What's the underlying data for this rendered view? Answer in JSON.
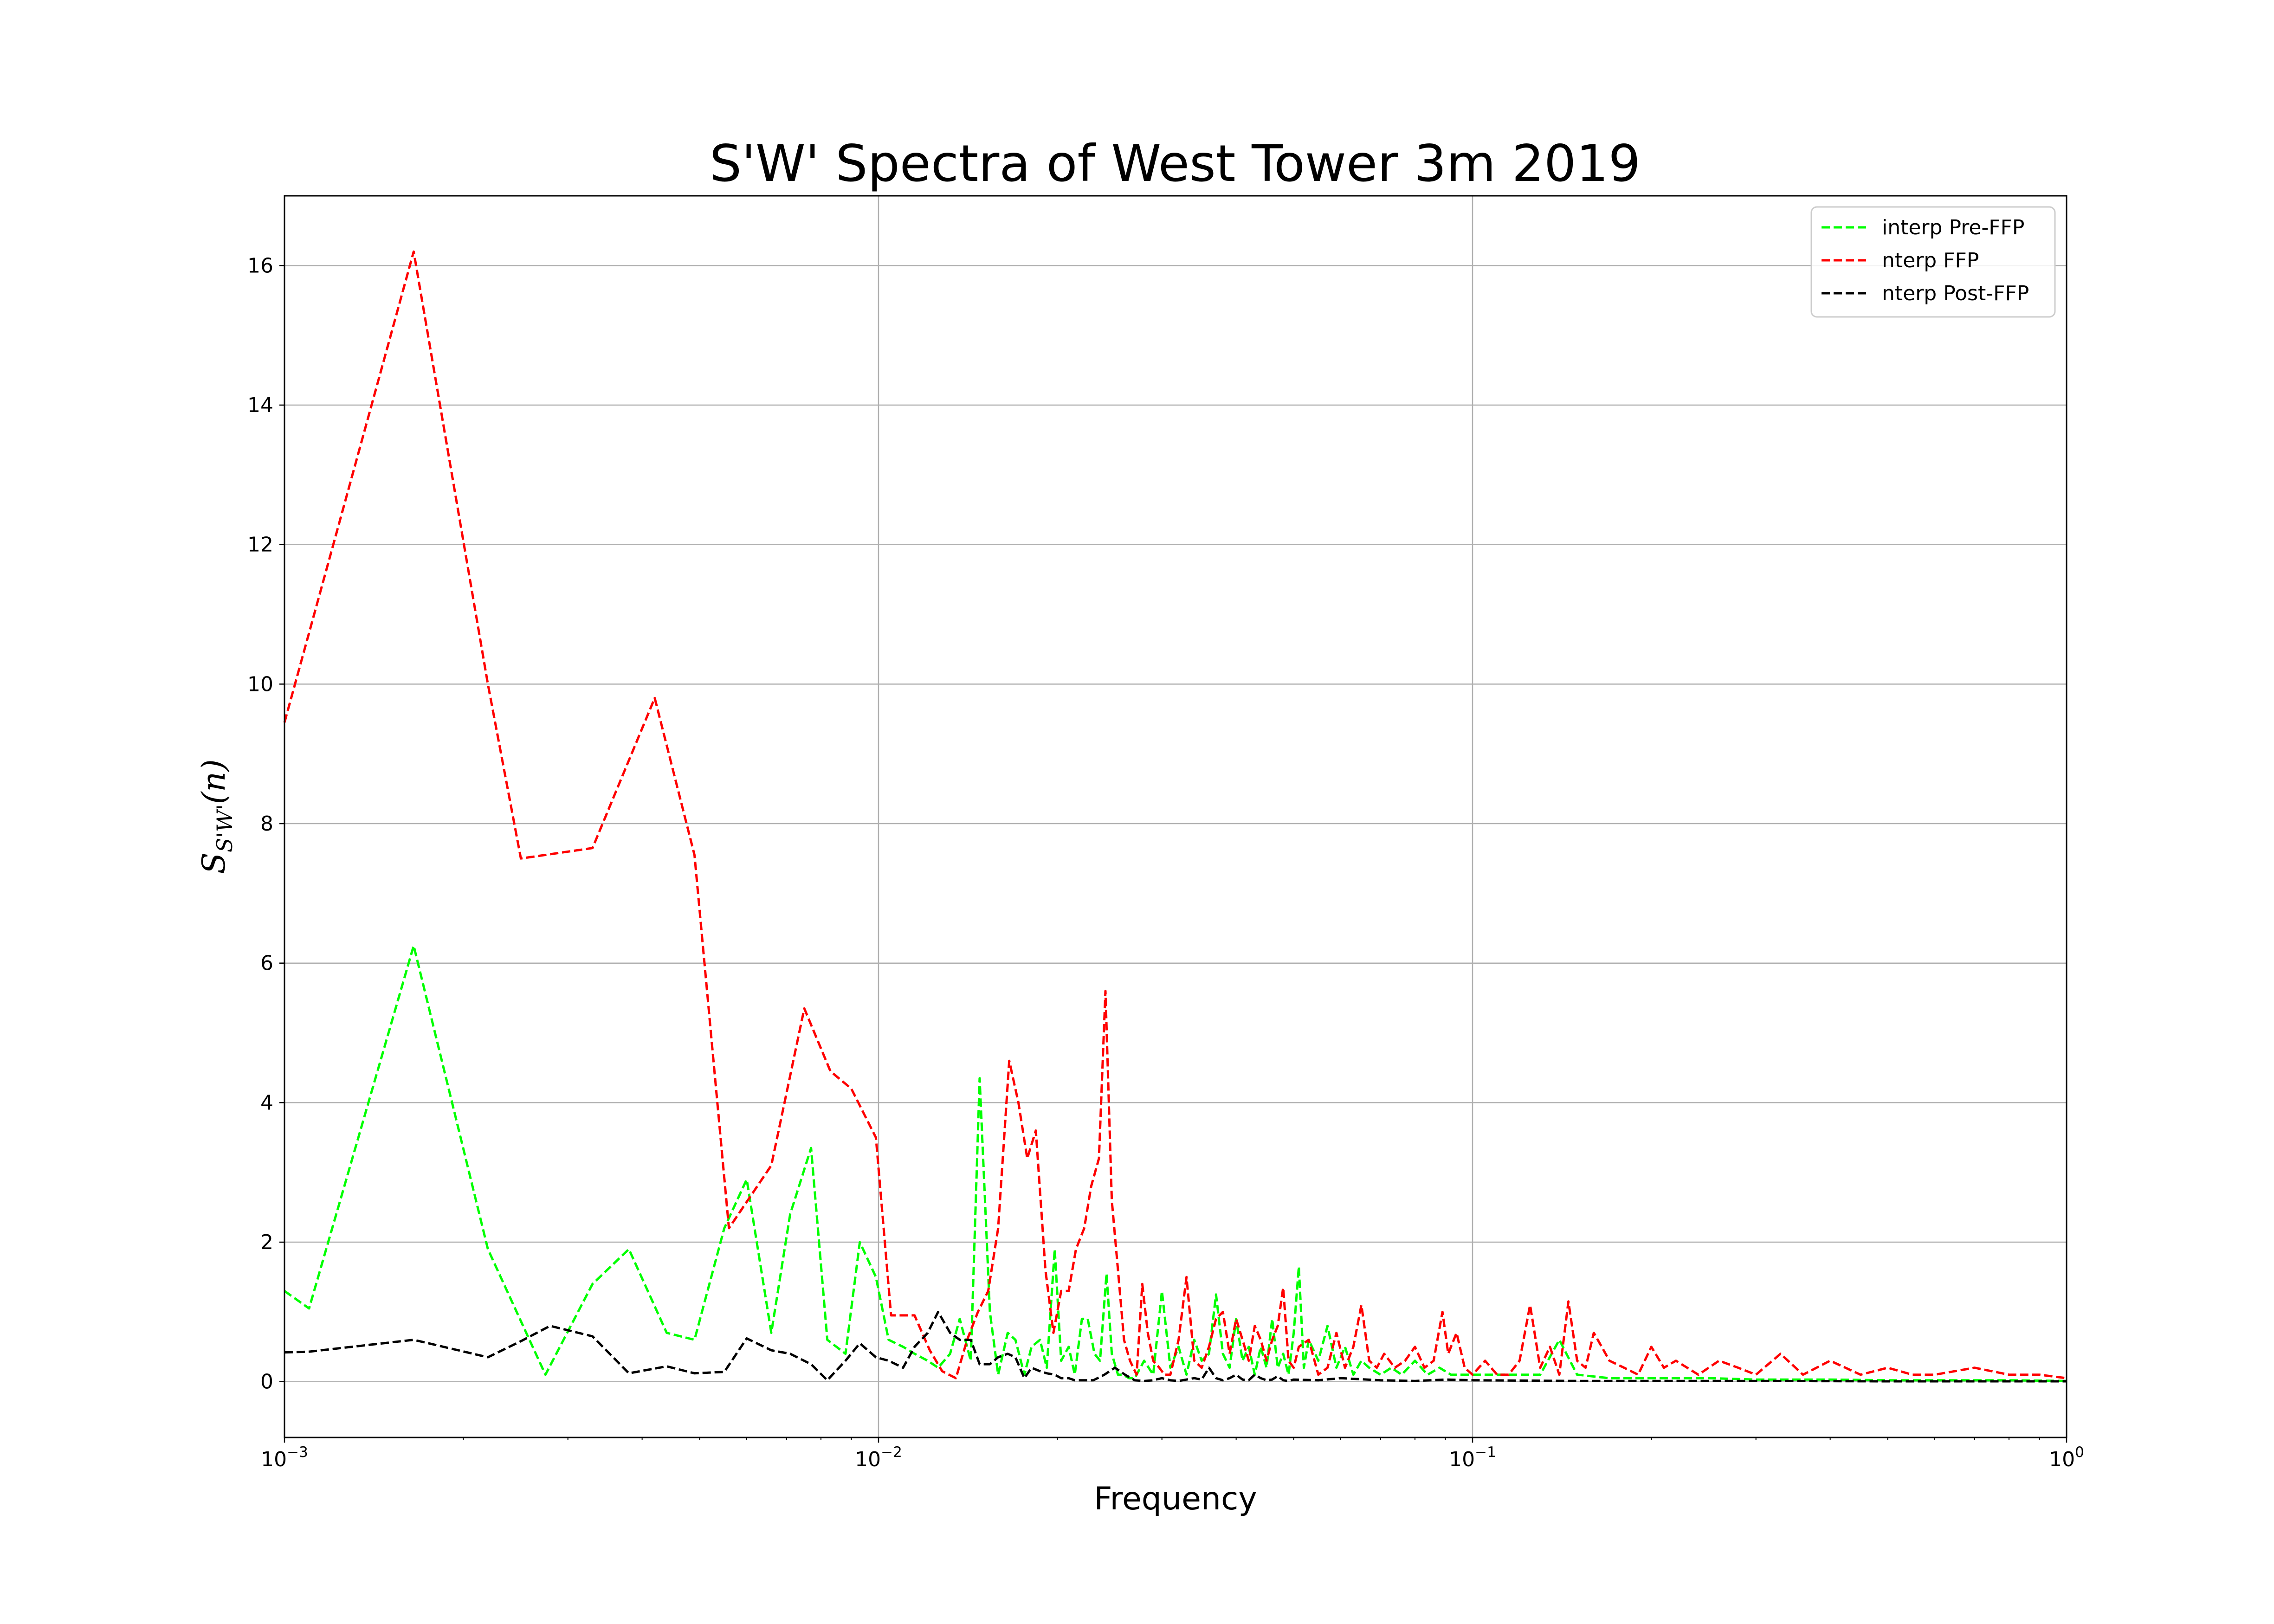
{
  "chart_data": {
    "type": "line",
    "title": "S'W' Spectra of West Tower 3m 2019",
    "xlabel": "Frequency",
    "ylabel_base": "S",
    "ylabel_sub": "S'W'",
    "ylabel_arg": "(n)",
    "x_scale": "log",
    "xlim": [
      0.001,
      1
    ],
    "ylim": [
      -0.8,
      17
    ],
    "grid": true,
    "legend_position": "upper right",
    "y_ticks": [
      {
        "value": 0,
        "label": "0"
      },
      {
        "value": 2,
        "label": "2"
      },
      {
        "value": 4,
        "label": "4"
      },
      {
        "value": 6,
        "label": "6"
      },
      {
        "value": 8,
        "label": "8"
      },
      {
        "value": 10,
        "label": "10"
      },
      {
        "value": 12,
        "label": "12"
      },
      {
        "value": 14,
        "label": "14"
      },
      {
        "value": 16,
        "label": "16"
      }
    ],
    "x_ticks": [
      {
        "value": 0.001,
        "base": "10",
        "exp": "−3"
      },
      {
        "value": 0.01,
        "base": "10",
        "exp": "−2"
      },
      {
        "value": 0.1,
        "base": "10",
        "exp": "−1"
      },
      {
        "value": 1,
        "base": "10",
        "exp": "0"
      }
    ],
    "series": [
      {
        "name": "interp Pre-FFP",
        "color": "#00ff00",
        "x": [
          0.001,
          0.0011,
          0.00165,
          0.0022,
          0.00275,
          0.0033,
          0.0038,
          0.0044,
          0.0049,
          0.0055,
          0.006,
          0.0066,
          0.0071,
          0.0077,
          0.0082,
          0.0088,
          0.0093,
          0.0099,
          0.0104,
          0.011,
          0.0115,
          0.0121,
          0.0126,
          0.0132,
          0.0137,
          0.0143,
          0.0148,
          0.0154,
          0.0159,
          0.0165,
          0.017,
          0.0176,
          0.0181,
          0.0187,
          0.0192,
          0.0198,
          0.0203,
          0.0209,
          0.0214,
          0.022,
          0.0225,
          0.0231,
          0.0236,
          0.0242,
          0.0247,
          0.0253,
          0.0258,
          0.0264,
          0.027,
          0.028,
          0.029,
          0.03,
          0.031,
          0.032,
          0.033,
          0.034,
          0.035,
          0.036,
          0.037,
          0.038,
          0.039,
          0.04,
          0.041,
          0.042,
          0.043,
          0.044,
          0.045,
          0.046,
          0.047,
          0.048,
          0.049,
          0.05,
          0.051,
          0.052,
          0.053,
          0.055,
          0.057,
          0.059,
          0.061,
          0.063,
          0.065,
          0.067,
          0.07,
          0.073,
          0.076,
          0.08,
          0.084,
          0.088,
          0.092,
          0.096,
          0.1,
          0.11,
          0.12,
          0.13,
          0.14,
          0.15,
          0.17,
          0.2,
          0.25,
          0.3,
          0.4,
          0.5,
          0.6,
          0.8,
          1.0
        ],
        "y": [
          1.3,
          1.05,
          6.25,
          1.9,
          0.1,
          1.4,
          1.9,
          0.7,
          0.6,
          2.2,
          2.9,
          0.7,
          2.4,
          3.35,
          0.6,
          0.4,
          2.0,
          1.5,
          0.6,
          0.5,
          0.4,
          0.3,
          0.2,
          0.4,
          0.9,
          0.3,
          4.35,
          1.0,
          0.1,
          0.7,
          0.6,
          0.1,
          0.5,
          0.6,
          0.2,
          1.9,
          0.3,
          0.5,
          0.1,
          0.9,
          0.9,
          0.4,
          0.3,
          1.55,
          0.4,
          0.1,
          0.1,
          0.05,
          0.05,
          0.3,
          0.1,
          1.3,
          0.2,
          0.5,
          0.1,
          0.6,
          0.3,
          0.4,
          1.25,
          0.4,
          0.2,
          0.9,
          0.3,
          0.5,
          0.1,
          0.5,
          0.2,
          0.9,
          0.2,
          0.4,
          0.1,
          0.7,
          1.65,
          0.2,
          0.6,
          0.3,
          0.8,
          0.2,
          0.5,
          0.1,
          0.3,
          0.2,
          0.1,
          0.2,
          0.1,
          0.3,
          0.1,
          0.2,
          0.1,
          0.1,
          0.1,
          0.1,
          0.1,
          0.1,
          0.6,
          0.1,
          0.05,
          0.05,
          0.05,
          0.03,
          0.03,
          0.02,
          0.02,
          0.02,
          0.01
        ]
      },
      {
        "name": "nterp FFP",
        "color": "#ff0000",
        "x": [
          0.001,
          0.00165,
          0.0022,
          0.0025,
          0.0033,
          0.0042,
          0.0049,
          0.0056,
          0.0066,
          0.0075,
          0.0083,
          0.009,
          0.0099,
          0.0105,
          0.0115,
          0.0122,
          0.0128,
          0.0135,
          0.0141,
          0.0147,
          0.0153,
          0.0159,
          0.0166,
          0.0172,
          0.0178,
          0.0184,
          0.0191,
          0.0197,
          0.0203,
          0.0209,
          0.0215,
          0.0222,
          0.0228,
          0.0235,
          0.0241,
          0.0247,
          0.0253,
          0.0259,
          0.0265,
          0.0272,
          0.0278,
          0.0284,
          0.029,
          0.0297,
          0.0303,
          0.031,
          0.032,
          0.033,
          0.034,
          0.035,
          0.036,
          0.037,
          0.038,
          0.039,
          0.04,
          0.041,
          0.042,
          0.043,
          0.044,
          0.045,
          0.046,
          0.047,
          0.048,
          0.049,
          0.05,
          0.051,
          0.053,
          0.055,
          0.057,
          0.059,
          0.061,
          0.063,
          0.065,
          0.067,
          0.069,
          0.071,
          0.074,
          0.077,
          0.08,
          0.083,
          0.086,
          0.089,
          0.091,
          0.094,
          0.097,
          0.1,
          0.105,
          0.11,
          0.115,
          0.12,
          0.125,
          0.13,
          0.135,
          0.14,
          0.145,
          0.15,
          0.155,
          0.16,
          0.165,
          0.17,
          0.18,
          0.19,
          0.2,
          0.21,
          0.22,
          0.24,
          0.26,
          0.28,
          0.3,
          0.33,
          0.36,
          0.4,
          0.45,
          0.5,
          0.55,
          0.6,
          0.7,
          0.8,
          0.9,
          1.0
        ],
        "y": [
          9.45,
          16.2,
          10.0,
          7.5,
          7.65,
          9.8,
          7.55,
          2.2,
          3.1,
          5.35,
          4.45,
          4.2,
          3.5,
          0.95,
          0.95,
          0.45,
          0.15,
          0.05,
          0.6,
          1.0,
          1.3,
          2.2,
          4.6,
          4.0,
          3.2,
          3.6,
          1.6,
          0.7,
          1.3,
          1.3,
          1.9,
          2.2,
          2.8,
          3.2,
          5.6,
          2.6,
          1.6,
          0.6,
          0.3,
          0.1,
          1.4,
          0.7,
          0.3,
          0.2,
          0.1,
          0.1,
          0.6,
          1.5,
          0.3,
          0.2,
          0.5,
          0.9,
          1.0,
          0.4,
          0.9,
          0.6,
          0.3,
          0.8,
          0.6,
          0.3,
          0.6,
          0.8,
          1.35,
          0.3,
          0.2,
          0.5,
          0.6,
          0.1,
          0.2,
          0.7,
          0.2,
          0.5,
          1.1,
          0.3,
          0.2,
          0.4,
          0.2,
          0.3,
          0.5,
          0.2,
          0.3,
          1.0,
          0.4,
          0.7,
          0.2,
          0.1,
          0.3,
          0.1,
          0.1,
          0.3,
          1.1,
          0.2,
          0.5,
          0.1,
          1.15,
          0.3,
          0.2,
          0.7,
          0.5,
          0.3,
          0.2,
          0.1,
          0.5,
          0.2,
          0.3,
          0.1,
          0.3,
          0.2,
          0.1,
          0.4,
          0.1,
          0.3,
          0.1,
          0.2,
          0.1,
          0.1,
          0.2,
          0.1,
          0.1,
          0.05
        ]
      },
      {
        "name": "nterp Post-FFP",
        "color": "#000000",
        "x": [
          0.001,
          0.0011,
          0.00165,
          0.0022,
          0.0025,
          0.0028,
          0.0033,
          0.0038,
          0.0044,
          0.0049,
          0.0055,
          0.006,
          0.0066,
          0.0071,
          0.0077,
          0.0082,
          0.0088,
          0.0093,
          0.0099,
          0.0104,
          0.011,
          0.0115,
          0.0121,
          0.0126,
          0.0132,
          0.0137,
          0.0143,
          0.0148,
          0.0154,
          0.0159,
          0.0165,
          0.017,
          0.0176,
          0.0181,
          0.0187,
          0.0192,
          0.0198,
          0.0203,
          0.0209,
          0.0214,
          0.022,
          0.023,
          0.024,
          0.025,
          0.026,
          0.027,
          0.028,
          0.029,
          0.03,
          0.031,
          0.032,
          0.033,
          0.034,
          0.035,
          0.036,
          0.037,
          0.038,
          0.039,
          0.04,
          0.041,
          0.042,
          0.043,
          0.044,
          0.045,
          0.046,
          0.047,
          0.048,
          0.049,
          0.05,
          0.055,
          0.06,
          0.07,
          0.08,
          0.09,
          0.1,
          0.15,
          0.2,
          0.3,
          0.5,
          1.0
        ],
        "y": [
          0.42,
          0.43,
          0.6,
          0.35,
          0.58,
          0.8,
          0.65,
          0.12,
          0.22,
          0.12,
          0.14,
          0.62,
          0.45,
          0.4,
          0.25,
          0.02,
          0.3,
          0.55,
          0.35,
          0.3,
          0.2,
          0.5,
          0.7,
          1.0,
          0.7,
          0.6,
          0.6,
          0.25,
          0.25,
          0.35,
          0.4,
          0.35,
          0.05,
          0.2,
          0.15,
          0.12,
          0.1,
          0.05,
          0.05,
          0.02,
          0.02,
          0.02,
          0.1,
          0.2,
          0.1,
          0.02,
          0.01,
          0.02,
          0.05,
          0.02,
          0.01,
          0.03,
          0.05,
          0.03,
          0.2,
          0.05,
          0.02,
          0.05,
          0.1,
          0.03,
          0.02,
          0.1,
          0.05,
          0.02,
          0.03,
          0.08,
          0.02,
          0.01,
          0.03,
          0.02,
          0.05,
          0.02,
          0.01,
          0.03,
          0.02,
          0.01,
          0.01,
          0.01,
          0.005,
          0.005
        ]
      }
    ]
  }
}
